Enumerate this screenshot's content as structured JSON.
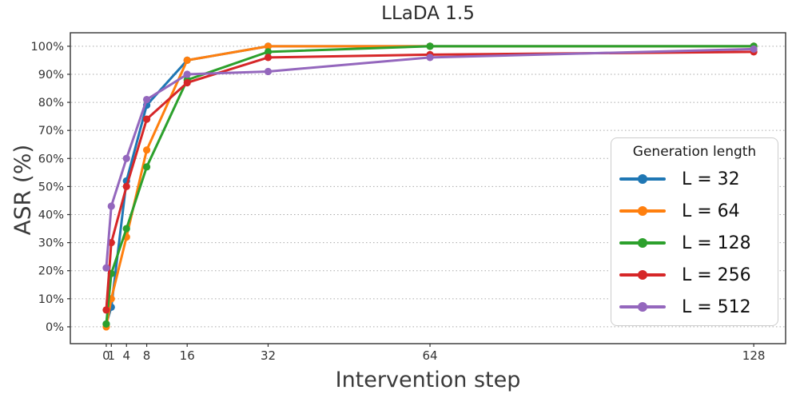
{
  "title": "LLaDA 1.5",
  "x_axis_label": "Intervention step",
  "y_axis_label": "ASR (%)",
  "legend": {
    "title": "Generation length",
    "entries": [
      "L = 32",
      "L = 64",
      "L = 128",
      "L = 256",
      "L = 512"
    ]
  },
  "chart_data": {
    "type": "line",
    "title": "LLaDA 1.5",
    "xlabel": "Intervention step",
    "ylabel": "ASR (%)",
    "x": [
      0,
      1,
      4,
      8,
      16,
      32,
      64,
      128
    ],
    "x_tick_labels": [
      "0",
      "1",
      "4",
      "8",
      "16",
      "32",
      "64",
      "128"
    ],
    "y_ticks": [
      0,
      10,
      20,
      30,
      40,
      50,
      60,
      70,
      80,
      90,
      100
    ],
    "y_tick_suffix": "%",
    "xlim": [
      -7.1,
      134.3
    ],
    "ylim": [
      -6,
      104.8
    ],
    "grid": "horizontal-dotted",
    "legend_position": "right",
    "legend_title": "Generation length",
    "series": [
      {
        "label": "L = 32",
        "color": "#1f77b4",
        "values": [
          1,
          7,
          52,
          79,
          95,
          100,
          100,
          100
        ]
      },
      {
        "label": "L = 64",
        "color": "#ff7f0e",
        "values": [
          0,
          10,
          32,
          63,
          95,
          100,
          100,
          100
        ]
      },
      {
        "label": "L = 128",
        "color": "#2ca02c",
        "values": [
          1,
          19,
          35,
          57,
          88,
          98,
          100,
          100
        ]
      },
      {
        "label": "L = 256",
        "color": "#d62728",
        "values": [
          6,
          30,
          50,
          74,
          87,
          96,
          97,
          98
        ]
      },
      {
        "label": "L = 512",
        "color": "#9467bd",
        "values": [
          21,
          43,
          60,
          81,
          90,
          91,
          96,
          99
        ]
      }
    ],
    "axis_color": "#333333",
    "grid_color": "#aaaaaa",
    "tick_label_color": "#333333"
  }
}
